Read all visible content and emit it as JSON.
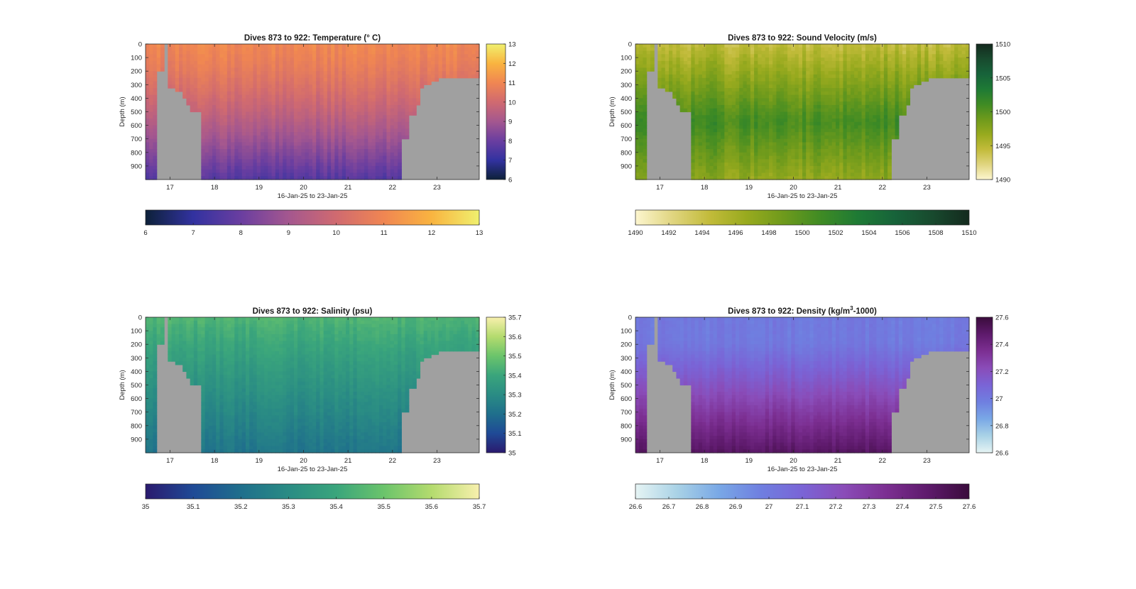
{
  "common": {
    "x_ticks": [
      "17",
      "18",
      "19",
      "20",
      "21",
      "22",
      "23"
    ],
    "x_tick_values": [
      17,
      18,
      19,
      20,
      21,
      22,
      23
    ],
    "xlim": [
      16.45,
      23.95
    ],
    "x_label": "16-Jan-25 to 23-Jan-25",
    "y_label": "Depth (m)",
    "y_ticks": [
      "0",
      "100",
      "200",
      "300",
      "400",
      "500",
      "600",
      "700",
      "800",
      "900"
    ],
    "y_tick_values": [
      0,
      100,
      200,
      300,
      400,
      500,
      600,
      700,
      800,
      900
    ],
    "ylim": [
      0,
      1000
    ],
    "y_direction": "reversed",
    "nodata_color": "#a0a0a0",
    "bathymetry_profile": {
      "x": [
        16.45,
        16.72,
        16.73,
        16.85,
        16.86,
        16.9,
        16.91,
        16.97,
        16.99,
        17.1,
        17.12,
        17.25,
        17.27,
        17.35,
        17.36,
        17.45,
        17.47,
        17.64,
        17.66,
        17.7,
        17.72,
        22.2,
        22.22,
        22.36,
        22.38,
        22.48,
        22.5,
        22.58,
        22.6,
        22.72,
        22.74,
        22.86,
        22.88,
        22.98,
        23.0,
        23.2,
        23.95
      ],
      "depth_m": [
        1000,
        1000,
        210,
        210,
        0,
        0,
        0,
        0,
        330,
        330,
        360,
        360,
        400,
        400,
        440,
        440,
        500,
        500,
        690,
        690,
        1000,
        1000,
        690,
        690,
        520,
        520,
        440,
        440,
        330,
        330,
        300,
        300,
        270,
        270,
        250,
        240,
        200
      ]
    }
  },
  "chart_data": [
    {
      "type": "heatmap",
      "title": "Dives 873 to 922: Temperature (° C)",
      "colorbar": {
        "ticks": [
          "6",
          "7",
          "8",
          "9",
          "10",
          "11",
          "12",
          "13"
        ],
        "range": [
          6,
          13
        ],
        "colormap": [
          "#0d2139",
          "#3232a0",
          "#6a3ea0",
          "#a4578f",
          "#d06a70",
          "#f08652",
          "#f9b440",
          "#f0f06e"
        ]
      },
      "field": {
        "surface": 11.0,
        "deep": 7.6,
        "top_depth": 0,
        "min_surface_range": 10.6,
        "max_surface_range": 11.3
      }
    },
    {
      "type": "heatmap",
      "title": "Dives 873 to 922: Sound Velocity (m/s)",
      "colorbar": {
        "ticks": [
          "1490",
          "1492",
          "1494",
          "1496",
          "1498",
          "1500",
          "1502",
          "1504",
          "1506",
          "1508",
          "1510"
        ],
        "side_ticks": [
          "1490",
          "1495",
          "1500",
          "1505",
          "1510"
        ],
        "range": [
          1490,
          1510
        ],
        "colormap": [
          "#fdf6cf",
          "#e0d580",
          "#c2bb3a",
          "#98aa1e",
          "#6e9a1c",
          "#3f8b24",
          "#1e7a35",
          "#17633a",
          "#184a2e",
          "#142a1e"
        ]
      },
      "field": {
        "surface": 1494.5,
        "mid": 1500.8,
        "deep": 1497.0
      }
    },
    {
      "type": "heatmap",
      "title": "Dives 873 to 922: Salinity (psu)",
      "colorbar": {
        "ticks": [
          "35",
          "35.1",
          "35.2",
          "35.3",
          "35.4",
          "35.5",
          "35.6",
          "35.7"
        ],
        "range": [
          35.0,
          35.7
        ],
        "colormap": [
          "#2a1a6e",
          "#1f4a96",
          "#1f6f8c",
          "#2a8c84",
          "#3aa57c",
          "#6bc46b",
          "#b4db6e",
          "#f8f0ad"
        ]
      },
      "field": {
        "surface": 35.45,
        "deep": 35.22
      }
    },
    {
      "type": "heatmap",
      "title": "Dives 873 to 922: Density (kg/m3-1000)",
      "title_parts": [
        "Dives 873 to 922: Density (kg/m",
        "3",
        "-1000)"
      ],
      "colorbar": {
        "ticks": [
          "26.6",
          "26.7",
          "26.8",
          "26.9",
          "27",
          "27.1",
          "27.2",
          "27.3",
          "27.4",
          "27.5",
          "27.6"
        ],
        "side_ticks": [
          "26.6",
          "26.8",
          "27",
          "27.2",
          "27.4",
          "27.6"
        ],
        "range": [
          26.6,
          27.6
        ],
        "colormap": [
          "#e6f4f4",
          "#a9d2e6",
          "#79a8e6",
          "#6f7fe0",
          "#7a64d6",
          "#8a4cb8",
          "#7c2f92",
          "#5e1a6c",
          "#3a0c3c"
        ]
      },
      "field": {
        "surface": 27.0,
        "deep": 27.5
      }
    }
  ]
}
